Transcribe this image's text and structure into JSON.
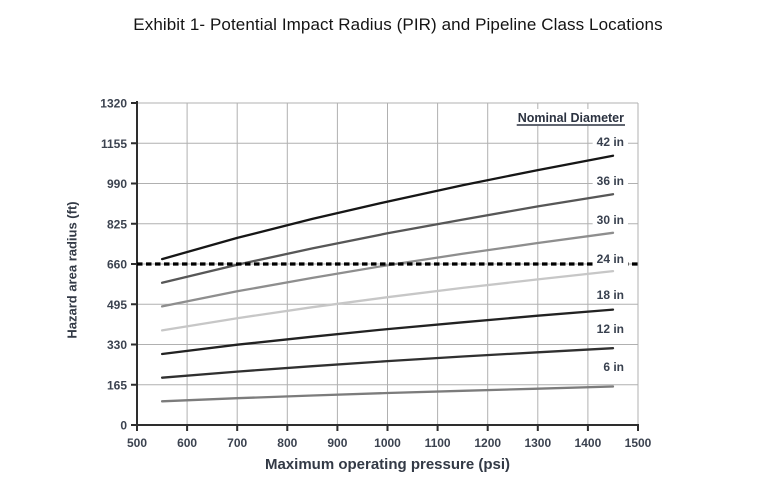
{
  "chart_data": {
    "type": "line",
    "title": "Exhibit 1- Potential Impact Radius (PIR) and Pipeline Class Locations",
    "xlabel": "Maximum operating pressure (psi)",
    "ylabel": "Hazard area radius (ft)",
    "xlim": [
      500,
      1500
    ],
    "ylim": [
      0,
      1320
    ],
    "x_ticks": [
      500,
      600,
      700,
      800,
      900,
      1000,
      1100,
      1200,
      1300,
      1400,
      1500
    ],
    "y_ticks": [
      0,
      165,
      330,
      495,
      660,
      825,
      990,
      1155,
      1320
    ],
    "grid": true,
    "legend_title": "Nominal Diameter",
    "legend_position": "top-right-inside",
    "x": [
      550,
      700,
      850,
      1000,
      1150,
      1300,
      1450
    ],
    "series": [
      {
        "name": "42 in",
        "color": "#161616",
        "values": [
          680,
          767,
          845,
          916,
          983,
          1045,
          1104
        ]
      },
      {
        "name": "36 in",
        "color": "#575757",
        "values": [
          583,
          657,
          724,
          786,
          842,
          896,
          946
        ]
      },
      {
        "name": "30 in",
        "color": "#8e8e8e",
        "values": [
          486,
          548,
          603,
          655,
          702,
          746,
          788
        ]
      },
      {
        "name": "24 in",
        "color": "#c7c7c7",
        "values": [
          388,
          438,
          483,
          524,
          562,
          597,
          631
        ]
      },
      {
        "name": "18 in",
        "color": "#222222",
        "values": [
          291,
          329,
          362,
          393,
          421,
          448,
          473
        ]
      },
      {
        "name": "12 in",
        "color": "#303030",
        "values": [
          194,
          219,
          241,
          262,
          281,
          298,
          315
        ]
      },
      {
        "name": "6 in",
        "color": "#7c7c7c",
        "values": [
          97,
          110,
          121,
          131,
          140,
          149,
          158
        ]
      }
    ],
    "reference_line": {
      "value": 660,
      "style": "dashed",
      "color": "#000000"
    },
    "colors": {
      "grid": "#b0b0b0",
      "axis": "#2e2e2e",
      "tick_label": "#3c4350",
      "legend_label": "#39414f",
      "legend_title": "#2b3240"
    }
  }
}
